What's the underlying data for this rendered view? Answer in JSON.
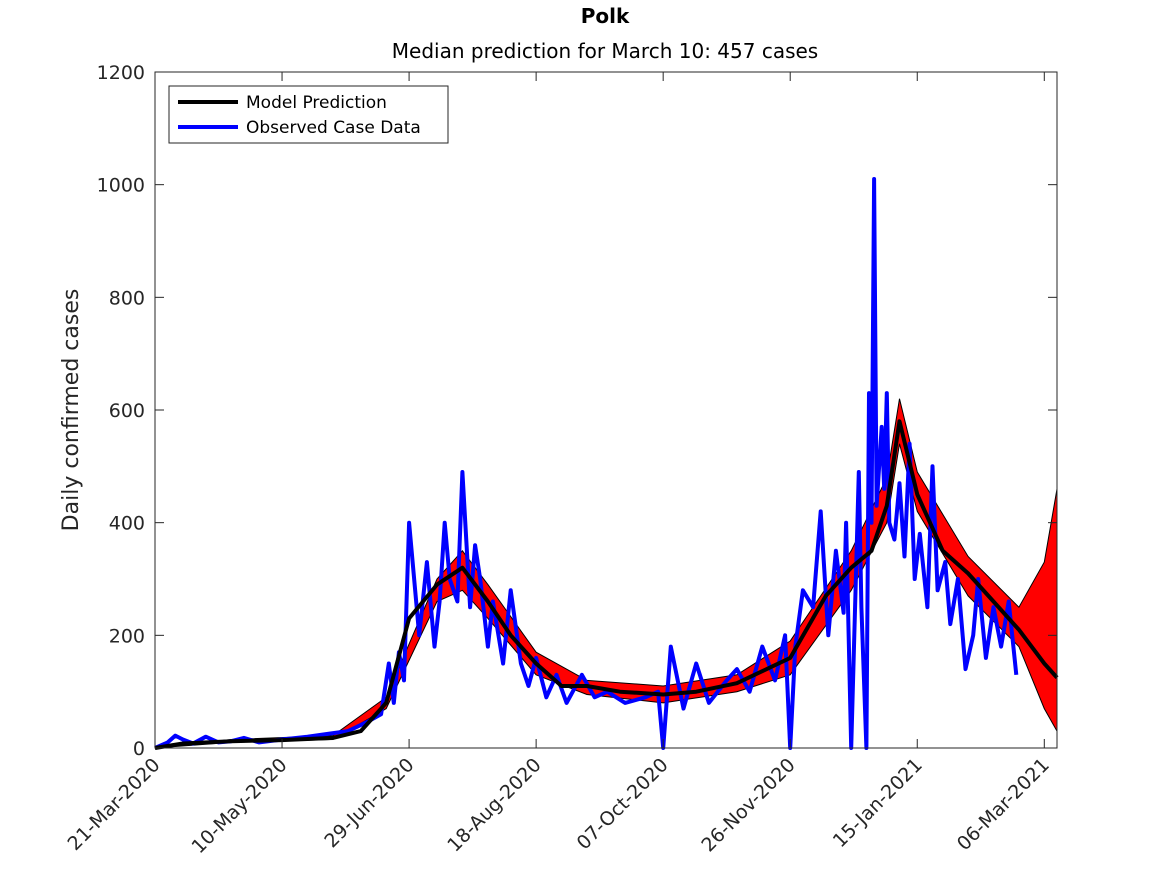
{
  "chart_data": {
    "type": "line",
    "title": "Polk",
    "subtitle": "Median prediction for March 10: 457 cases",
    "xlabel": "",
    "ylabel": "Daily confirmed cases",
    "ylim": [
      0,
      1200
    ],
    "xlim": [
      "2020-03-21",
      "2021-03-11"
    ],
    "y_ticks": [
      0,
      200,
      400,
      600,
      800,
      1000,
      1200
    ],
    "x_tick_dates": [
      "2020-03-21",
      "2020-05-10",
      "2020-06-29",
      "2020-08-18",
      "2020-10-07",
      "2020-11-26",
      "2021-01-15",
      "2021-03-06"
    ],
    "x_tick_labels": [
      "21-Mar-2020",
      "10-May-2020",
      "29-Jun-2020",
      "18-Aug-2020",
      "07-Oct-2020",
      "26-Nov-2020",
      "15-Jan-2021",
      "06-Mar-2021"
    ],
    "legend": {
      "position": "top-left",
      "entries": [
        "Model Prediction",
        "Observed Case Data"
      ]
    },
    "colors": {
      "model": "#000000",
      "observed": "#0000ff",
      "band": "#ff0000"
    },
    "series": [
      {
        "name": "Model Prediction",
        "x": [
          "2020-03-21",
          "2020-04-01",
          "2020-04-20",
          "2020-05-10",
          "2020-05-30",
          "2020-06-10",
          "2020-06-20",
          "2020-06-29",
          "2020-07-10",
          "2020-07-20",
          "2020-07-30",
          "2020-08-08",
          "2020-08-18",
          "2020-08-28",
          "2020-09-07",
          "2020-09-20",
          "2020-10-07",
          "2020-10-20",
          "2020-11-05",
          "2020-11-26",
          "2020-12-10",
          "2020-12-20",
          "2020-12-28",
          "2021-01-03",
          "2021-01-08",
          "2021-01-15",
          "2021-01-25",
          "2021-02-04",
          "2021-02-14",
          "2021-02-24",
          "2021-03-06",
          "2021-03-11"
        ],
        "values": [
          0,
          8,
          12,
          14,
          18,
          30,
          80,
          230,
          290,
          320,
          260,
          200,
          150,
          110,
          110,
          100,
          95,
          100,
          115,
          160,
          270,
          320,
          350,
          430,
          580,
          450,
          350,
          310,
          260,
          210,
          150,
          125
        ]
      },
      {
        "name": "Observed Case Data",
        "x": [
          "2020-03-21",
          "2020-03-26",
          "2020-03-29",
          "2020-04-01",
          "2020-04-05",
          "2020-04-10",
          "2020-04-15",
          "2020-04-20",
          "2020-04-25",
          "2020-05-01",
          "2020-05-10",
          "2020-05-20",
          "2020-05-28",
          "2020-06-05",
          "2020-06-12",
          "2020-06-18",
          "2020-06-21",
          "2020-06-23",
          "2020-06-25",
          "2020-06-27",
          "2020-06-29",
          "2020-07-03",
          "2020-07-06",
          "2020-07-09",
          "2020-07-11",
          "2020-07-13",
          "2020-07-15",
          "2020-07-18",
          "2020-07-20",
          "2020-07-23",
          "2020-07-25",
          "2020-07-27",
          "2020-07-30",
          "2020-08-01",
          "2020-08-05",
          "2020-08-08",
          "2020-08-12",
          "2020-08-15",
          "2020-08-18",
          "2020-08-22",
          "2020-08-26",
          "2020-08-30",
          "2020-09-05",
          "2020-09-10",
          "2020-09-15",
          "2020-09-22",
          "2020-09-30",
          "2020-10-05",
          "2020-10-07",
          "2020-10-10",
          "2020-10-15",
          "2020-10-20",
          "2020-10-25",
          "2020-11-01",
          "2020-11-05",
          "2020-11-10",
          "2020-11-15",
          "2020-11-20",
          "2020-11-24",
          "2020-11-26",
          "2020-11-28",
          "2020-12-01",
          "2020-12-05",
          "2020-12-08",
          "2020-12-11",
          "2020-12-14",
          "2020-12-17",
          "2020-12-18",
          "2020-12-20",
          "2020-12-23",
          "2020-12-24",
          "2020-12-26",
          "2020-12-27",
          "2020-12-28",
          "2020-12-29",
          "2020-12-30",
          "2021-01-01",
          "2021-01-02",
          "2021-01-03",
          "2021-01-04",
          "2021-01-06",
          "2021-01-08",
          "2021-01-10",
          "2021-01-12",
          "2021-01-14",
          "2021-01-16",
          "2021-01-19",
          "2021-01-21",
          "2021-01-23",
          "2021-01-26",
          "2021-01-28",
          "2021-01-31",
          "2021-02-03",
          "2021-02-06",
          "2021-02-08",
          "2021-02-11",
          "2021-02-14",
          "2021-02-17",
          "2021-02-20",
          "2021-02-23"
        ],
        "values": [
          0,
          10,
          22,
          15,
          8,
          20,
          10,
          12,
          18,
          10,
          15,
          20,
          25,
          30,
          45,
          60,
          150,
          80,
          170,
          120,
          400,
          200,
          330,
          180,
          260,
          400,
          300,
          260,
          490,
          250,
          360,
          300,
          180,
          260,
          150,
          280,
          150,
          110,
          160,
          90,
          130,
          80,
          130,
          90,
          100,
          80,
          90,
          100,
          0,
          180,
          70,
          150,
          80,
          120,
          140,
          100,
          180,
          120,
          200,
          0,
          180,
          280,
          250,
          420,
          200,
          350,
          240,
          400,
          0,
          490,
          250,
          0,
          630,
          400,
          1010,
          430,
          570,
          460,
          630,
          400,
          370,
          470,
          340,
          540,
          300,
          380,
          250,
          500,
          280,
          330,
          220,
          300,
          140,
          200,
          300,
          160,
          250,
          180,
          260,
          130
        ]
      },
      {
        "name": "",
        "role": "prediction-band",
        "x": [
          "2020-03-21",
          "2020-04-20",
          "2020-05-30",
          "2020-06-20",
          "2020-07-10",
          "2020-07-20",
          "2020-07-30",
          "2020-08-18",
          "2020-09-07",
          "2020-10-07",
          "2020-11-05",
          "2020-11-26",
          "2020-12-20",
          "2021-01-03",
          "2021-01-08",
          "2021-01-15",
          "2021-02-04",
          "2021-02-24",
          "2021-03-06",
          "2021-03-11"
        ],
        "lower": [
          0,
          10,
          15,
          70,
          260,
          280,
          230,
          130,
          95,
          80,
          100,
          130,
          280,
          400,
          540,
          420,
          270,
          180,
          70,
          30
        ],
        "upper": [
          0,
          15,
          22,
          90,
          300,
          350,
          290,
          170,
          120,
          110,
          130,
          190,
          350,
          480,
          620,
          490,
          340,
          250,
          330,
          460
        ]
      }
    ]
  }
}
